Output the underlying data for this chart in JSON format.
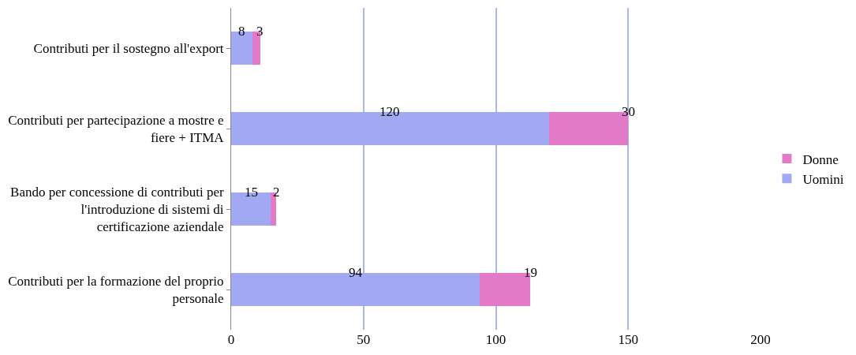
{
  "chart_data": {
    "type": "bar",
    "orientation": "horizontal",
    "stacked": true,
    "categories": [
      "Contributi per il sostegno all'export",
      "Contributi per partecipazione a mostre e fiere + ITMA",
      "Bando per concessione di contributi per l'introduzione di sistemi di certificazione aziendale",
      "Contributi per la formazione del proprio personale"
    ],
    "series": [
      {
        "name": "Uomini",
        "color": "#a3a8f2",
        "values": [
          8,
          120,
          15,
          94
        ]
      },
      {
        "name": "Donne",
        "color": "#e27ac8",
        "values": [
          3,
          30,
          2,
          19
        ]
      }
    ],
    "xlim": [
      0,
      200
    ],
    "xticks": [
      0,
      50,
      100,
      150,
      200
    ],
    "grid": "x",
    "legend": "right",
    "data_labels": true
  }
}
